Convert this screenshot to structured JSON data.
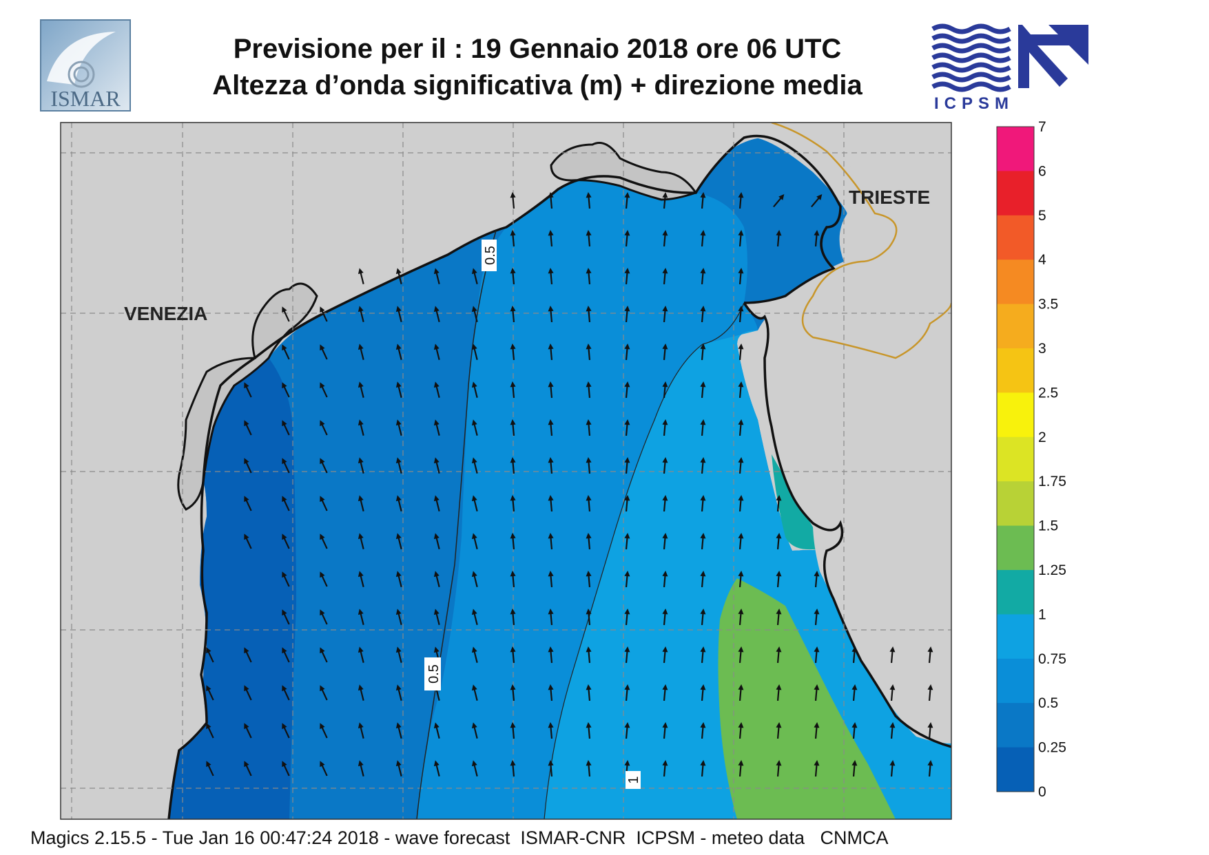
{
  "header": {
    "title_line1": "Previsione per il  :  19  Gennaio  2018   ore 06 UTC",
    "title_line2": "Altezza d’onda significativa (m) + direzione media",
    "logo_left_text": "ISMAR",
    "logo_right_text": "ICPSM"
  },
  "map": {
    "cities": [
      "VENEZIA",
      "TRIESTE"
    ],
    "contour_labels": [
      "0.5",
      "0.5",
      "1"
    ],
    "land_color": "#cfcfcf",
    "border_color": "#c8962a",
    "arrow_direction": "north"
  },
  "colorbar": {
    "labels": [
      "7",
      "6",
      "5",
      "4",
      "3.5",
      "3",
      "2.5",
      "2",
      "1.75",
      "1.5",
      "1.25",
      "1",
      "0.75",
      "0.5",
      "0.25",
      "0"
    ],
    "colors": [
      "#f0187a",
      "#e8202a",
      "#f25a28",
      "#f58a22",
      "#f5ac1e",
      "#f5c414",
      "#f8f20c",
      "#dce424",
      "#b8d236",
      "#6cbc52",
      "#12aaa4",
      "#0ea2e2",
      "#0a8ed8",
      "#0a78c6",
      "#0660b6"
    ]
  },
  "footer": {
    "text": "Magics 2.15.5 - Tue Jan 16 00:47:24 2018 - wave forecast  ISMAR-CNR  ICPSM - meteo data   CNMCA"
  }
}
